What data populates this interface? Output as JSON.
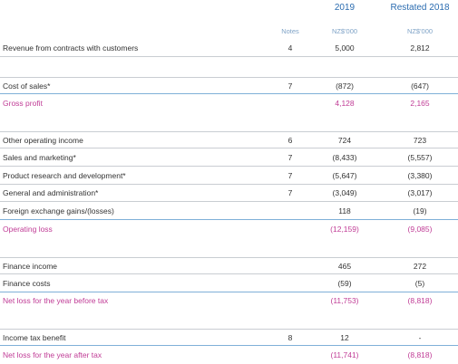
{
  "header": {
    "columns": [
      "Notes",
      "2019",
      "Restated 2018"
    ],
    "units": [
      "NZ$'000",
      "NZ$'000"
    ]
  },
  "rows": [
    [
      "Revenue from contracts with customers",
      "4",
      "5,000",
      "2,812"
    ],
    [
      "Cost of sales*",
      "7",
      "(872)",
      "(647)"
    ],
    [
      "Gross profit",
      "",
      "4,128",
      "2,165"
    ],
    [
      "Other operating income",
      "6",
      "724",
      "723"
    ],
    [
      "Sales and marketing*",
      "7",
      "(8,433)",
      "(5,557)"
    ],
    [
      "Product research and development*",
      "7",
      "(5,647)",
      "(3,380)"
    ],
    [
      "General and administration*",
      "7",
      "(3,049)",
      "(3,017)"
    ],
    [
      "Foreign exchange gains/(losses)",
      "",
      "118",
      "(19)"
    ],
    [
      "Operating loss",
      "",
      "(12,159)",
      "(9,085)"
    ],
    [
      "Finance income",
      "",
      "465",
      "272"
    ],
    [
      "Finance costs",
      "",
      "(59)",
      "(5)"
    ],
    [
      "Net loss for the year before tax",
      "",
      "(11,753)",
      "(8,818)"
    ],
    [
      "Income tax benefit",
      "8",
      "12",
      "-"
    ],
    [
      "Net loss for the year after tax",
      "",
      "(11,741)",
      "(8,818)"
    ]
  ]
}
